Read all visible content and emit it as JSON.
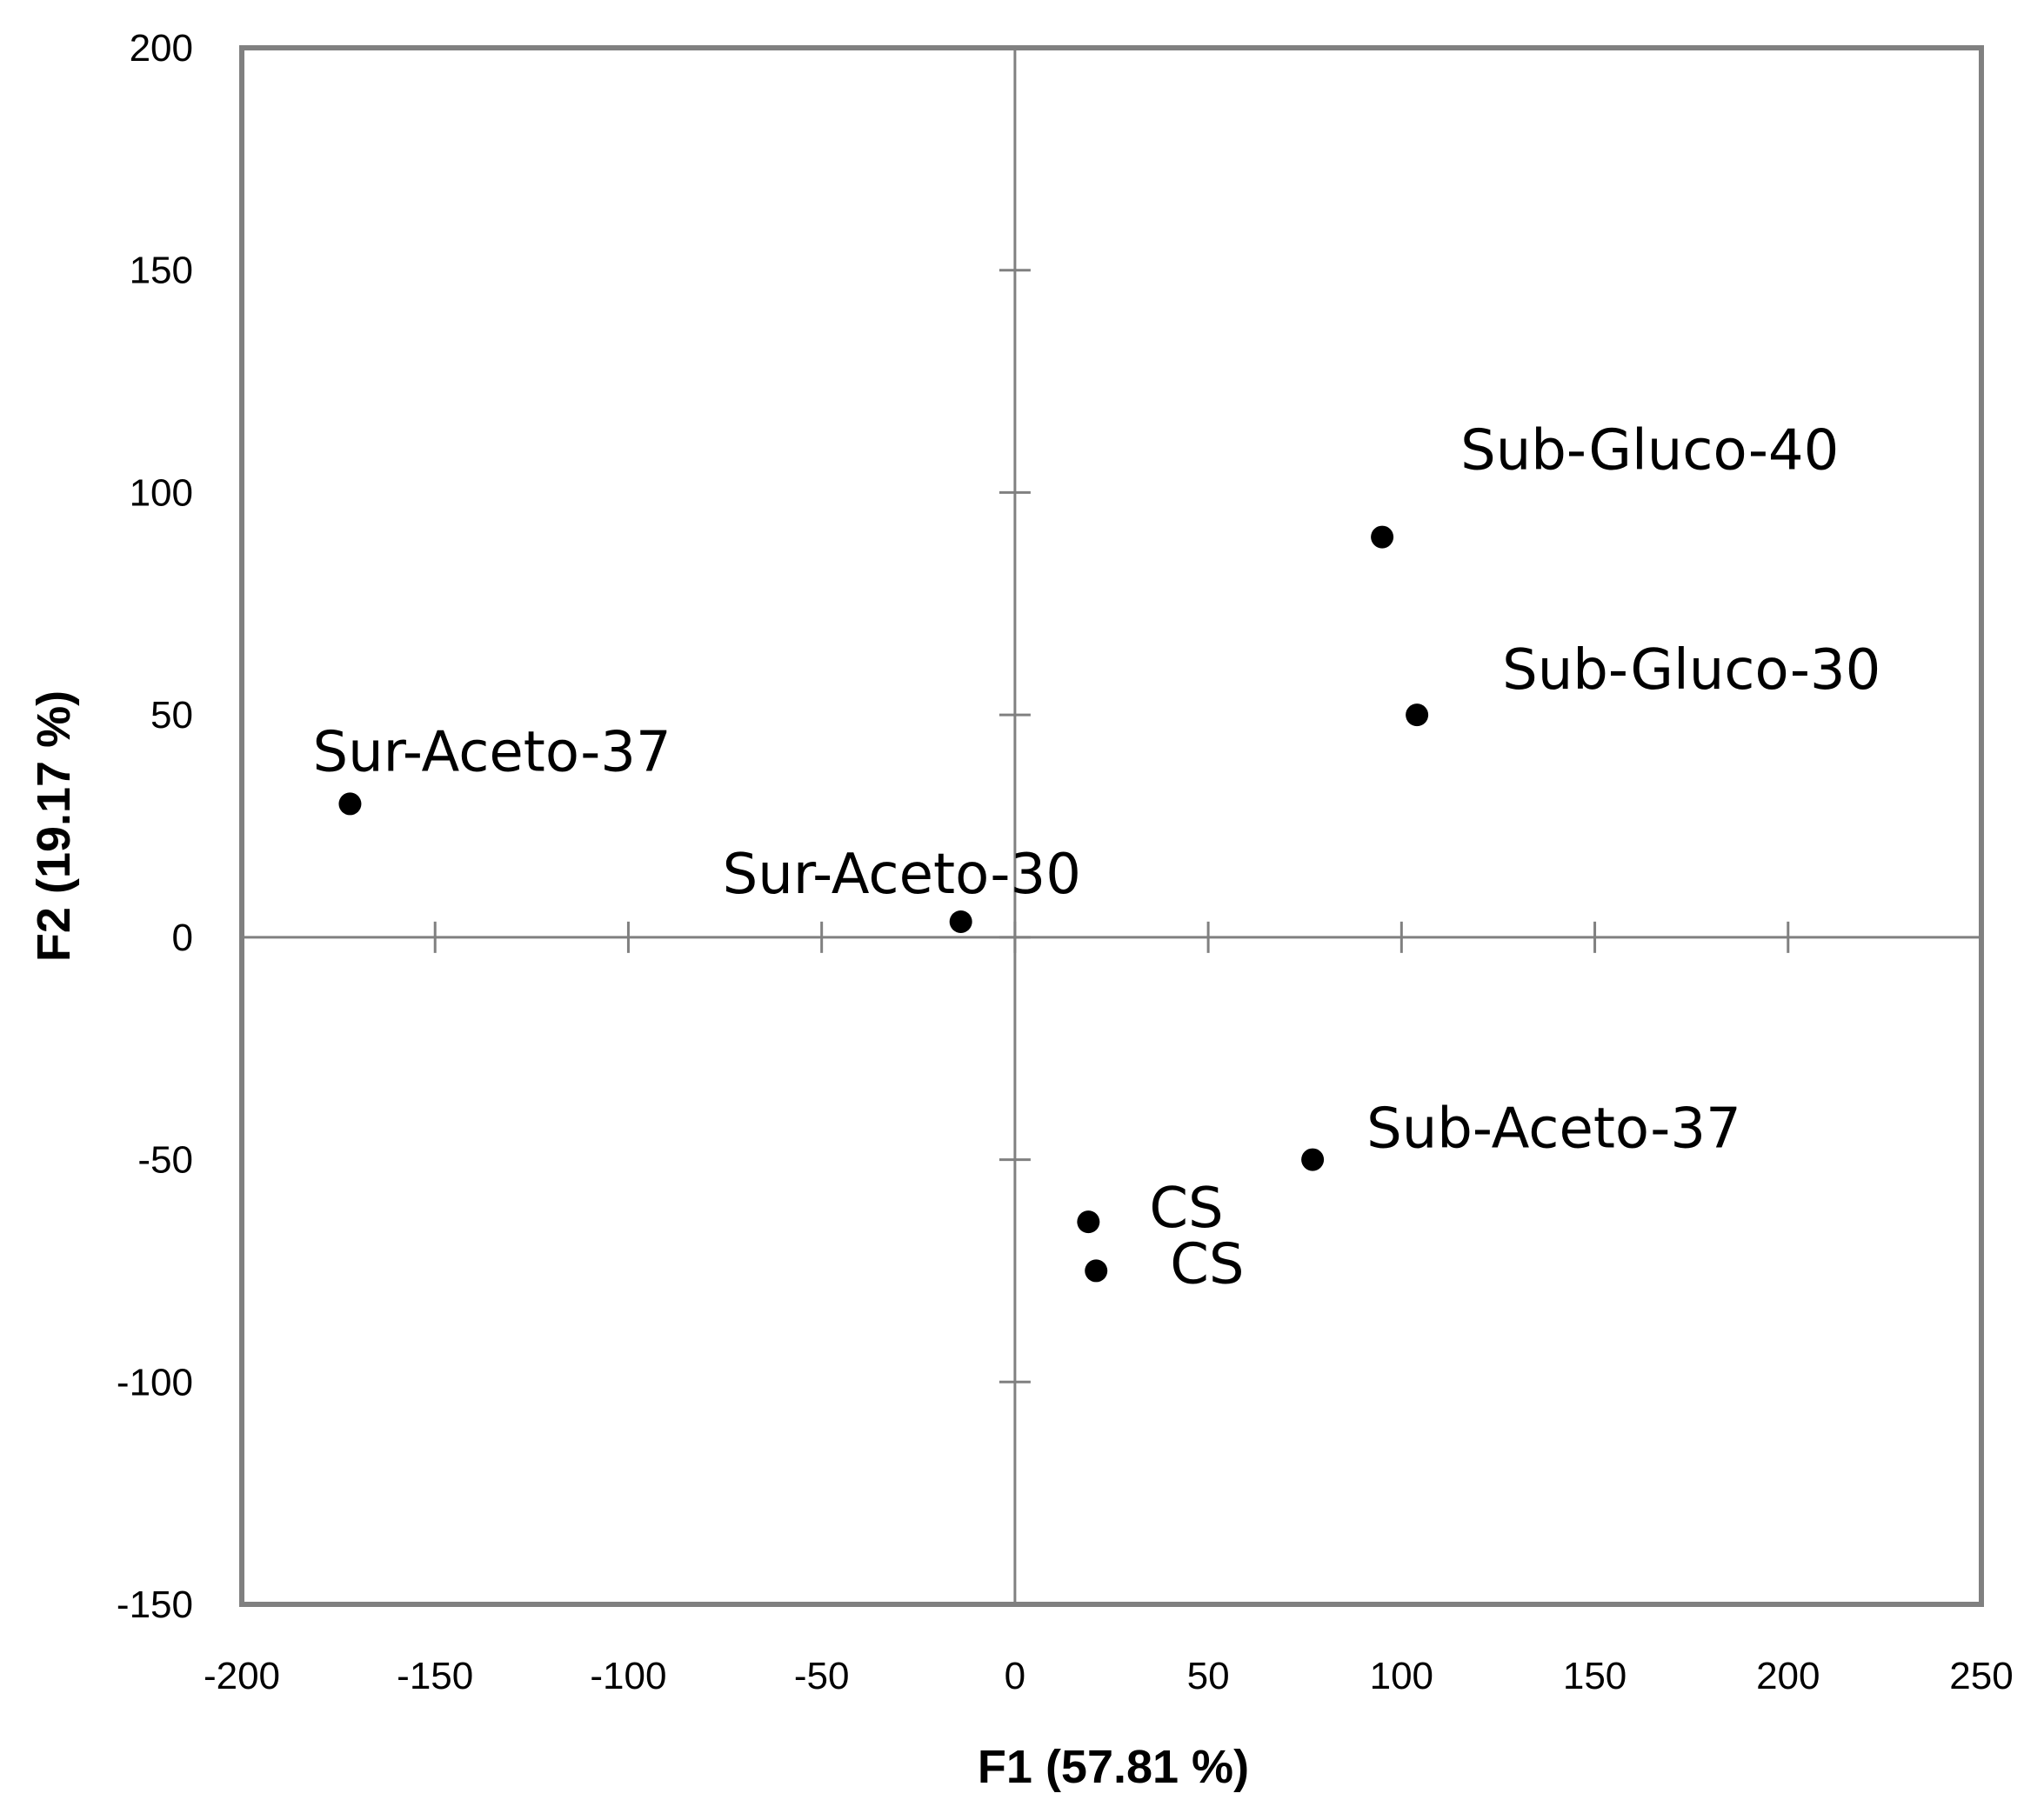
{
  "chart_data": {
    "type": "scatter",
    "title": "",
    "xlabel": "F1 (57.81 %)",
    "ylabel": "F2 (19.17 %)",
    "xlim": [
      -200,
      250
    ],
    "ylim": [
      -150,
      200
    ],
    "xticks": [
      -200,
      -150,
      -100,
      -50,
      0,
      50,
      100,
      150,
      200,
      250
    ],
    "yticks": [
      -150,
      -100,
      -50,
      0,
      50,
      100,
      150,
      200
    ],
    "grid": false,
    "colors": {
      "axes": "#808080",
      "frame": "#808080",
      "points": "#000000"
    },
    "points": [
      {
        "label": "Sur-Aceto-37",
        "x": -172,
        "y": 30
      },
      {
        "label": "Sur-Aceto-30",
        "x": -14,
        "y": 3.5
      },
      {
        "label": "Sub-Gluco-40",
        "x": 95,
        "y": 90
      },
      {
        "label": "Sub-Gluco-30",
        "x": 104,
        "y": 50
      },
      {
        "label": "Sub-Aceto-37",
        "x": 77,
        "y": -50
      },
      {
        "label": "CS",
        "x": 19,
        "y": -64
      },
      {
        "label": "CS",
        "x": 21,
        "y": -75
      }
    ]
  }
}
